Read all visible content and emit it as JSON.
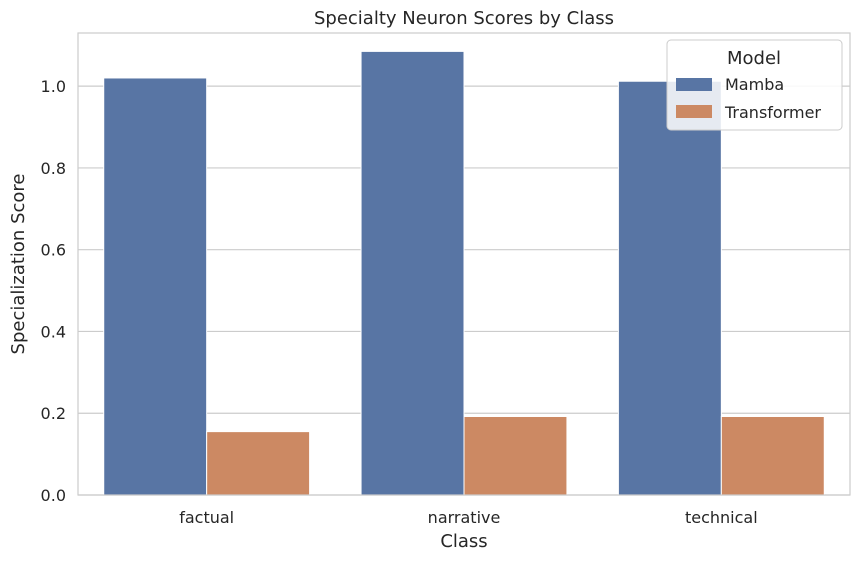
{
  "chart_data": {
    "type": "bar",
    "title": "Specialty Neuron Scores by Class",
    "xlabel": "Class",
    "ylabel": "Specialization Score",
    "categories": [
      "factual",
      "narrative",
      "technical"
    ],
    "series": [
      {
        "name": "Mamba",
        "color": "#5875a4",
        "values": [
          1.02,
          1.085,
          1.012
        ]
      },
      {
        "name": "Transformer",
        "color": "#cc8963",
        "values": [
          0.155,
          0.192,
          0.192
        ]
      }
    ],
    "ylim": [
      0,
      1.13
    ],
    "yticks": [
      0.0,
      0.2,
      0.4,
      0.6,
      0.8,
      1.0
    ],
    "ytick_labels": [
      "0.0",
      "0.2",
      "0.4",
      "0.6",
      "0.8",
      "1.0"
    ],
    "grid": true,
    "legend": {
      "title": "Model",
      "placement": "top-right"
    }
  }
}
